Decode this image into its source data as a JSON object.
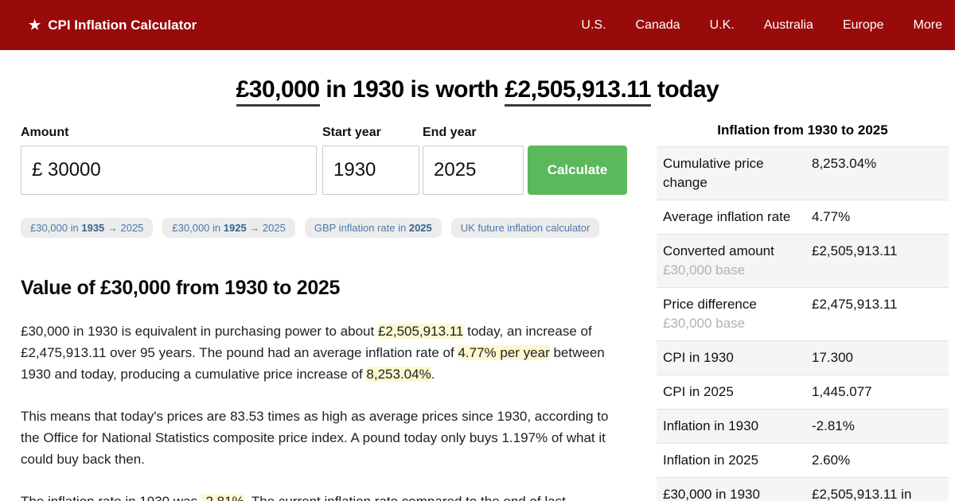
{
  "colors": {
    "header_red": "#990a0a",
    "button_green": "#5cb85c",
    "chip_bg": "#ececec",
    "chip_blue": "#4a7aab",
    "highlight_yellow": "#fcf8d0",
    "stripe_gray": "#f5f5f5",
    "sub_gray": "#b2b2b2"
  },
  "header": {
    "star_icon": "★",
    "brand": "CPI Inflation Calculator",
    "nav": [
      "U.S.",
      "Canada",
      "U.K.",
      "Australia",
      "Europe",
      "More"
    ]
  },
  "title": {
    "segments": [
      {
        "t": "£30,000",
        "u": true
      },
      {
        "t": " in 1930 is worth "
      },
      {
        "t": "£2,505,913.11",
        "u": true
      },
      {
        "t": " today"
      }
    ]
  },
  "form": {
    "amount_label": "Amount",
    "amount_value": "£ 30000",
    "start_year_label": "Start year",
    "start_year_value": "1930",
    "end_year_label": "End year",
    "end_year_value": "2025",
    "calculate_label": "Calculate"
  },
  "chips": [
    {
      "prefix": "£30,000 in ",
      "bold": "1935",
      "suffix": " → 2025"
    },
    {
      "prefix": "£30,000 in ",
      "bold": "1925",
      "suffix": " → 2025"
    },
    {
      "prefix": "GBP inflation rate in ",
      "bold": "2025",
      "suffix": ""
    },
    {
      "prefix": "UK future inflation calculator",
      "bold": "",
      "suffix": ""
    }
  ],
  "article": {
    "heading": "Value of £30,000 from 1930 to 2025",
    "paragraphs": [
      {
        "segments": [
          {
            "t": "£30,000 in 1930 is equivalent in purchasing power to about "
          },
          {
            "t": "£2,505,913.11",
            "hl": true
          },
          {
            "t": " today, an increase of £2,475,913.11 over 95 years. The pound had an average inflation rate of "
          },
          {
            "t": "4.77% per year",
            "hl": true
          },
          {
            "t": " between 1930 and today, producing a cumulative price increase of "
          },
          {
            "t": "8,253.04%",
            "hl": true
          },
          {
            "t": "."
          }
        ]
      },
      {
        "segments": [
          {
            "t": "This means that today's prices are 83.53 times as high as average prices since 1930, according to the Office for National Statistics composite price index. A pound today only buys 1.197% of what it could buy back then."
          }
        ]
      },
      {
        "segments": [
          {
            "t": "The inflation rate in 1930 was "
          },
          {
            "t": "-2.81%",
            "hl": true
          },
          {
            "t": ". The current inflation rate compared to the end of last"
          }
        ]
      }
    ]
  },
  "sidebar": {
    "title": "Inflation from 1930 to 2025",
    "rows": [
      {
        "label": "Cumulative price change",
        "sub": "",
        "value": "8,253.04%"
      },
      {
        "label": "Average inflation rate",
        "sub": "",
        "value": "4.77%"
      },
      {
        "label": "Converted amount",
        "sub": "£30,000 base",
        "value": "£2,505,913.11"
      },
      {
        "label": "Price difference",
        "sub": "£30,000 base",
        "value": "£2,475,913.11"
      },
      {
        "label": "CPI in 1930",
        "sub": "",
        "value": "17.300"
      },
      {
        "label": "CPI in 2025",
        "sub": "",
        "value": "1,445.077"
      },
      {
        "label": "Inflation in 1930",
        "sub": "",
        "value": "-2.81%"
      },
      {
        "label": "Inflation in 2025",
        "sub": "",
        "value": "2.60%"
      },
      {
        "label": "£30,000 in 1930",
        "sub": "",
        "value": "£2,505,913.11 in"
      }
    ]
  }
}
